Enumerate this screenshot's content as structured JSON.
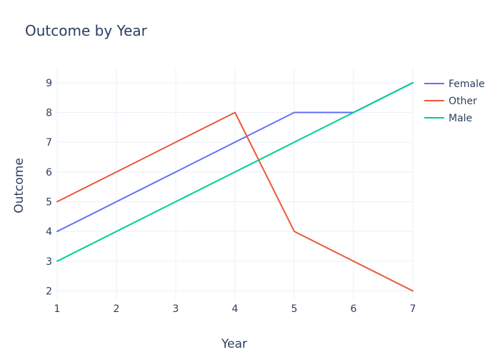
{
  "chart_data": {
    "type": "line",
    "title": "Outcome by Year",
    "xlabel": "Year",
    "ylabel": "Outcome",
    "x": [
      1,
      2,
      3,
      4,
      5,
      6,
      7
    ],
    "xlim": [
      1,
      7
    ],
    "ylim": [
      1.7,
      9.5
    ],
    "xticks": [
      1,
      2,
      3,
      4,
      5,
      6,
      7
    ],
    "yticks": [
      2,
      3,
      4,
      5,
      6,
      7,
      8,
      9
    ],
    "grid": true,
    "legend_position": "top-right",
    "series": [
      {
        "name": "Female",
        "color": "#636efa",
        "values": [
          4,
          5,
          6,
          7,
          8,
          8,
          9
        ]
      },
      {
        "name": "Other",
        "color": "#ef553b",
        "values": [
          5,
          6,
          7,
          8,
          4,
          3,
          2
        ]
      },
      {
        "name": "Male",
        "color": "#00cc96",
        "values": [
          3,
          4,
          5,
          6,
          7,
          8,
          9
        ]
      }
    ]
  }
}
